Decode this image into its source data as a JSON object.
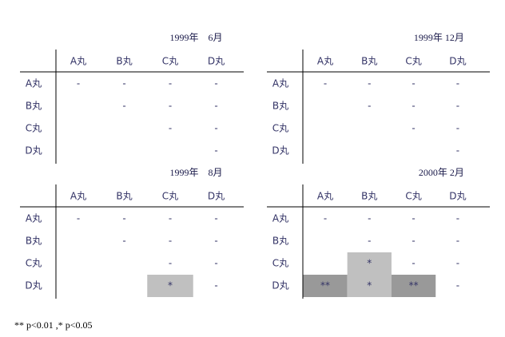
{
  "tables": [
    {
      "title": "1999年　6月",
      "columns": [
        "A丸",
        "B丸",
        "C丸",
        "D丸"
      ],
      "rows": [
        {
          "label": "A丸",
          "cells": [
            "-",
            "-",
            "-",
            "-"
          ]
        },
        {
          "label": "B丸",
          "cells": [
            null,
            "-",
            "-",
            "-"
          ]
        },
        {
          "label": "C丸",
          "cells": [
            null,
            null,
            "-",
            "-"
          ]
        },
        {
          "label": "D丸",
          "cells": [
            null,
            null,
            null,
            "-"
          ]
        }
      ]
    },
    {
      "title": "1999年 12月",
      "columns": [
        "A丸",
        "B丸",
        "C丸",
        "D丸"
      ],
      "rows": [
        {
          "label": "A丸",
          "cells": [
            "-",
            "-",
            "-",
            "-"
          ]
        },
        {
          "label": "B丸",
          "cells": [
            null,
            "-",
            "-",
            "-"
          ]
        },
        {
          "label": "C丸",
          "cells": [
            null,
            null,
            "-",
            "-"
          ]
        },
        {
          "label": "D丸",
          "cells": [
            null,
            null,
            null,
            "-"
          ]
        }
      ]
    },
    {
      "title": "1999年　8月",
      "columns": [
        "A丸",
        "B丸",
        "C丸",
        "D丸"
      ],
      "rows": [
        {
          "label": "A丸",
          "cells": [
            "-",
            "-",
            "-",
            "-"
          ]
        },
        {
          "label": "B丸",
          "cells": [
            null,
            "-",
            "-",
            "-"
          ]
        },
        {
          "label": "C丸",
          "cells": [
            null,
            null,
            "-",
            "-"
          ]
        },
        {
          "label": "D丸",
          "cells": [
            null,
            null,
            "*",
            "-"
          ]
        }
      ]
    },
    {
      "title": "2000年 2月",
      "columns": [
        "A丸",
        "B丸",
        "C丸",
        "D丸"
      ],
      "rows": [
        {
          "label": "A丸",
          "cells": [
            "-",
            "-",
            "-",
            "-"
          ]
        },
        {
          "label": "B丸",
          "cells": [
            null,
            "-",
            "-",
            "-"
          ]
        },
        {
          "label": "C丸",
          "cells": [
            null,
            "*",
            "-",
            "-"
          ]
        },
        {
          "label": "D丸",
          "cells": [
            "**",
            "*",
            "**",
            "-"
          ]
        }
      ]
    }
  ],
  "footnote": "** p<0.01 ,* p<0.05"
}
